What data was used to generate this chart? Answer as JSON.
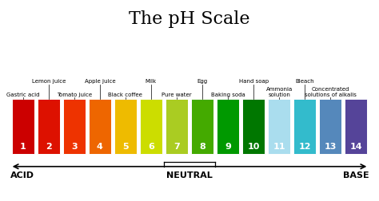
{
  "title": "The pH Scale",
  "title_fontsize": 16,
  "background_color": "#ffffff",
  "bar_colors": [
    "#cc0000",
    "#dd1100",
    "#ee3300",
    "#ee6600",
    "#eebb00",
    "#ccdd00",
    "#aacc22",
    "#44aa00",
    "#009900",
    "#007700",
    "#aaddee",
    "#33bbcc",
    "#5588bb",
    "#554499"
  ],
  "ph_values": [
    1,
    2,
    3,
    4,
    5,
    6,
    7,
    8,
    9,
    10,
    11,
    12,
    13,
    14
  ],
  "labels_top": [
    "Gastric acid",
    "Lemon juice",
    "Tomato juice",
    "Apple juice",
    "Black coffee",
    "Milk",
    "Pure water",
    "Egg",
    "Baking soda",
    "Hand soap",
    "Ammonia\nsolution",
    "Bleach",
    "Concentrated\nsolutions of alkalis",
    ""
  ],
  "label_row": [
    0,
    1,
    0,
    1,
    0,
    1,
    0,
    1,
    0,
    1,
    0,
    1,
    0,
    0
  ],
  "bar_number_fontsize": 8,
  "label_fontsize": 5.0,
  "arrow_fontsize": 8
}
